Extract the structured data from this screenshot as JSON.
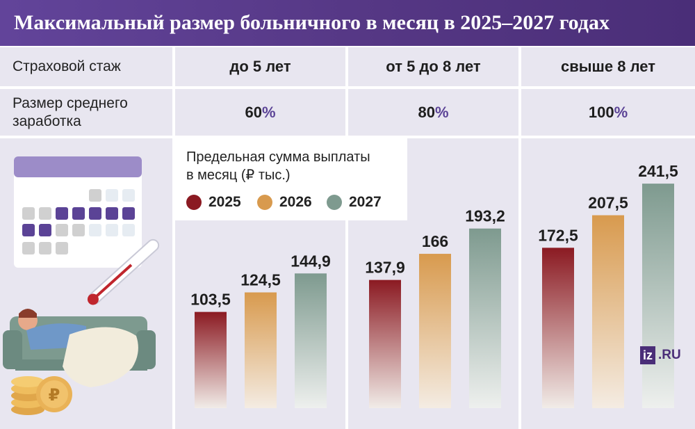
{
  "title": "Максимальный размер больничного в месяц в 2025–2027 годах",
  "table": {
    "row1_label": "Страховой стаж",
    "row2_label_line1": "Размер среднего",
    "row2_label_line2": "заработка",
    "groups": [
      "до 5 лет",
      "от 5 до 8 лет",
      "свыше 8 лет"
    ],
    "percents": [
      "60",
      "80",
      "100"
    ],
    "percent_symbol": "%"
  },
  "legend": {
    "title_line1": "Предельная сумма выплаты",
    "title_line2": "в месяц (₽ тыс.)",
    "items": [
      "2025",
      "2026",
      "2027"
    ]
  },
  "logo": {
    "box": "iz",
    "text": ".RU"
  },
  "colors": {
    "title_bg": "#553784",
    "cell_bg": "#e8e6f0",
    "series_2025": "#8b1a22",
    "series_2026": "#d89a4e",
    "series_2027": "#7e9a8f"
  },
  "chart_data": {
    "type": "bar",
    "categories": [
      "до 5 лет",
      "от 5 до 8 лет",
      "свыше 8 лет"
    ],
    "series": [
      {
        "name": "2025",
        "values": [
          103.5,
          137.9,
          172.5
        ],
        "labels": [
          "103,5",
          "137,9",
          "172,5"
        ]
      },
      {
        "name": "2026",
        "values": [
          124.5,
          166,
          207.5
        ],
        "labels": [
          "124,5",
          "166",
          "207,5"
        ]
      },
      {
        "name": "2027",
        "values": [
          144.9,
          193.2,
          241.5
        ],
        "labels": [
          "144,9",
          "193,2",
          "241,5"
        ]
      }
    ],
    "title": "Предельная сумма выплаты в месяц (₽ тыс.)",
    "ylim": [
      0,
      260
    ],
    "grid": false,
    "legend": "top-left"
  }
}
